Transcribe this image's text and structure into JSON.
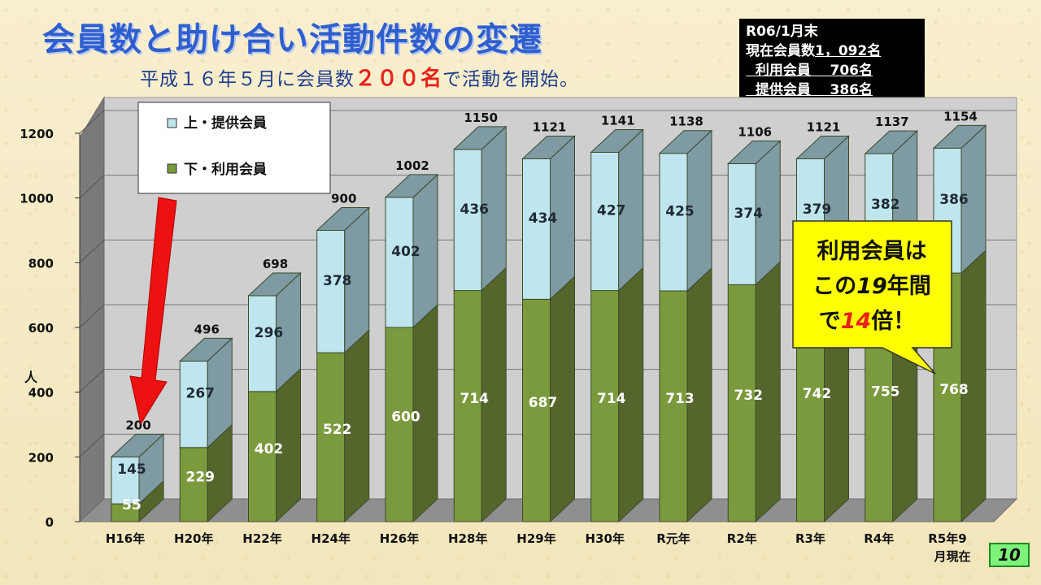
{
  "slide": {
    "title": "会員数と助け合い活動件数の変遷",
    "subtitle_pre": "平成１６年５月に会員数",
    "subtitle_hl": "２００名",
    "subtitle_post": "で活動を開始。",
    "page_number": "10"
  },
  "infobox": {
    "line1": "R06/1月末",
    "line2_label": "現在会員数",
    "line2_value": "1，092名",
    "line3": "  利用会員    706名",
    "line4": "  提供会員    386名"
  },
  "callout": {
    "line1": "利用会員は",
    "line2_pre": "この",
    "line2_num": "19",
    "line2_post": "年間",
    "line3_pre": "で",
    "line3_num": "14",
    "line3_post": "倍！"
  },
  "colors": {
    "upper_front": "#bfe5ee",
    "upper_side": "#7e9aa3",
    "lower_front": "#7b9a3e",
    "lower_side": "#55662c",
    "arrow": "#ee1111",
    "callout_bg": "#ffff00",
    "floor": "#8f8f8f",
    "wall": "#cfcfcf"
  },
  "chart_data": {
    "type": "bar",
    "stacked": true,
    "categories": [
      "H16年",
      "H20年",
      "H22年",
      "H24年",
      "H26年",
      "H28年",
      "H29年",
      "H30年",
      "R元年",
      "R2年",
      "R3年",
      "R4年",
      "R5年9月現在"
    ],
    "category_labels": [
      [
        "H16年"
      ],
      [
        "H20年"
      ],
      [
        "H22年"
      ],
      [
        "H24年"
      ],
      [
        "H26年"
      ],
      [
        "H28年"
      ],
      [
        "H29年"
      ],
      [
        "H30年"
      ],
      [
        "R元年"
      ],
      [
        "R2年"
      ],
      [
        "R3年"
      ],
      [
        "R4年"
      ],
      [
        "R5年9",
        "月現在"
      ]
    ],
    "series": [
      {
        "name": "下・利用会員",
        "values": [
          55,
          229,
          402,
          522,
          600,
          714,
          687,
          714,
          713,
          732,
          742,
          755,
          768
        ]
      },
      {
        "name": "上・提供会員",
        "values": [
          145,
          267,
          296,
          378,
          402,
          436,
          434,
          427,
          425,
          374,
          379,
          382,
          386
        ]
      }
    ],
    "totals": [
      200,
      496,
      698,
      900,
      1002,
      1150,
      1121,
      1141,
      1138,
      1106,
      1121,
      1137,
      1154
    ],
    "legend": [
      "上・提供会員",
      "下・利用会員"
    ],
    "legend_position": "top-left",
    "ylabel": "人",
    "xlabel": "",
    "ylim": [
      0,
      1200
    ],
    "yticks": [
      0,
      200,
      400,
      600,
      800,
      1000,
      1200
    ],
    "grid": true,
    "three_d": true
  }
}
